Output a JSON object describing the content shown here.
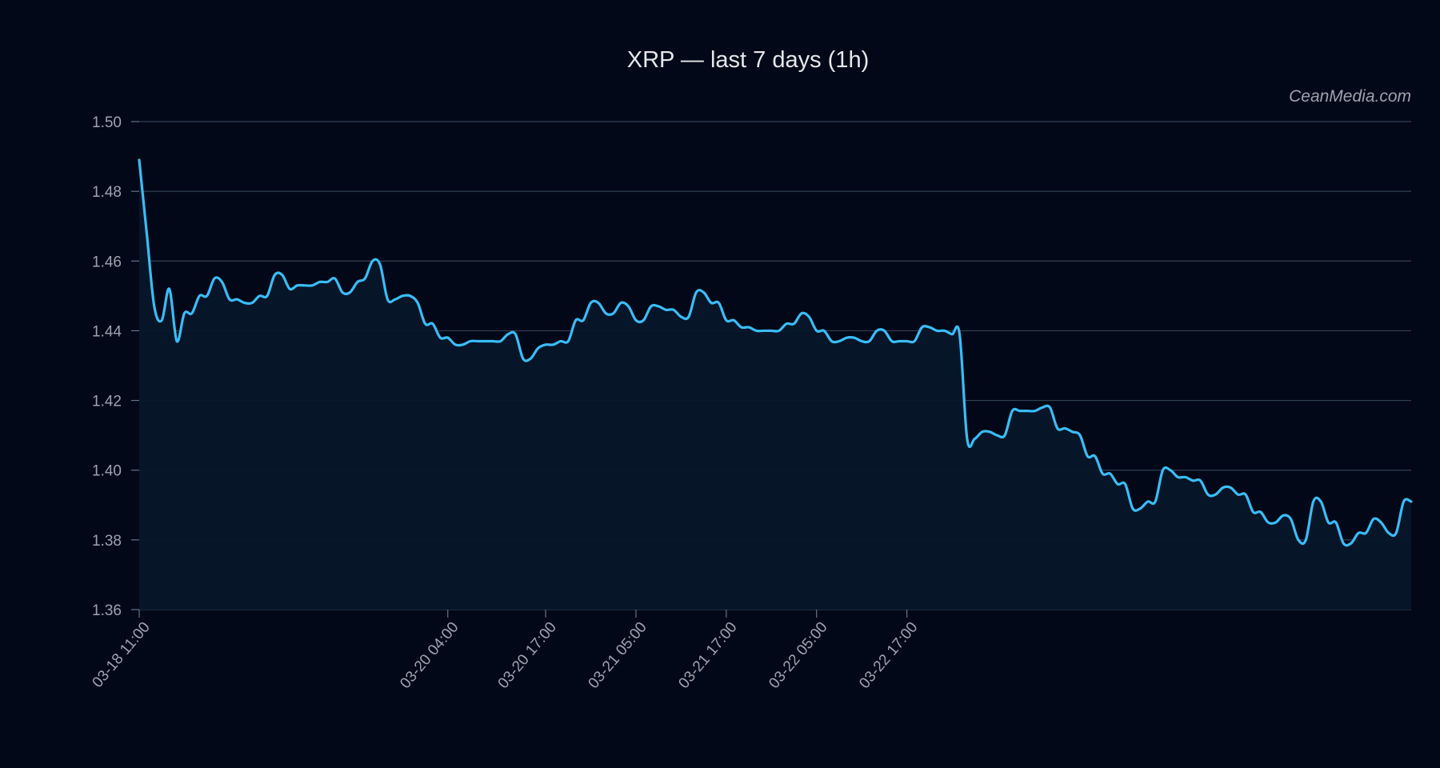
{
  "chart_data": {
    "type": "area",
    "title": "XRP — last 7 days (1h)",
    "watermark": "CeanMedia.com",
    "ylim": [
      1.36,
      1.5
    ],
    "yticks": [
      "1.50",
      "1.48",
      "1.46",
      "1.44",
      "1.42",
      "1.40",
      "1.38",
      "1.36"
    ],
    "x_start": "03-18 11:00",
    "x_interval_hours": 1,
    "xticks": [
      "03-18 11:00",
      "03-20 04:00",
      "03-20 17:00",
      "03-21 05:00",
      "03-21 17:00",
      "03-22 05:00",
      "03-22 17:00"
    ],
    "grid": true,
    "series": [
      {
        "color": "#38bdf8",
        "values": [
          1.489,
          1.468,
          1.447,
          1.443,
          1.452,
          1.437,
          1.445,
          1.445,
          1.45,
          1.45,
          1.455,
          1.454,
          1.449,
          1.449,
          1.448,
          1.448,
          1.45,
          1.45,
          1.456,
          1.456,
          1.452,
          1.453,
          1.453,
          1.453,
          1.454,
          1.454,
          1.455,
          1.451,
          1.451,
          1.454,
          1.455,
          1.46,
          1.459,
          1.449,
          1.449,
          1.45,
          1.45,
          1.448,
          1.442,
          1.442,
          1.438,
          1.438,
          1.436,
          1.436,
          1.437,
          1.437,
          1.437,
          1.437,
          1.437,
          1.439,
          1.439,
          1.432,
          1.432,
          1.435,
          1.436,
          1.436,
          1.437,
          1.437,
          1.443,
          1.443,
          1.448,
          1.448,
          1.445,
          1.445,
          1.448,
          1.447,
          1.443,
          1.443,
          1.447,
          1.447,
          1.446,
          1.446,
          1.444,
          1.444,
          1.451,
          1.451,
          1.448,
          1.448,
          1.443,
          1.443,
          1.441,
          1.441,
          1.44,
          1.44,
          1.44,
          1.44,
          1.442,
          1.442,
          1.445,
          1.444,
          1.44,
          1.44,
          1.437,
          1.437,
          1.438,
          1.438,
          1.437,
          1.437,
          1.44,
          1.44,
          1.437,
          1.437,
          1.437,
          1.437,
          1.441,
          1.441,
          1.44,
          1.44,
          1.439,
          1.439,
          1.409,
          1.409,
          1.411,
          1.411,
          1.41,
          1.41,
          1.417,
          1.417,
          1.417,
          1.417,
          1.418,
          1.418,
          1.412,
          1.412,
          1.411,
          1.41,
          1.404,
          1.404,
          1.399,
          1.399,
          1.396,
          1.396,
          1.389,
          1.389,
          1.391,
          1.391,
          1.4,
          1.4,
          1.398,
          1.398,
          1.397,
          1.397,
          1.393,
          1.393,
          1.395,
          1.395,
          1.393,
          1.393,
          1.388,
          1.388,
          1.385,
          1.385,
          1.387,
          1.386,
          1.38,
          1.38,
          1.391,
          1.391,
          1.385,
          1.385,
          1.379,
          1.379,
          1.382,
          1.382,
          1.386,
          1.385,
          1.382,
          1.382,
          1.391,
          1.391
        ]
      }
    ]
  }
}
